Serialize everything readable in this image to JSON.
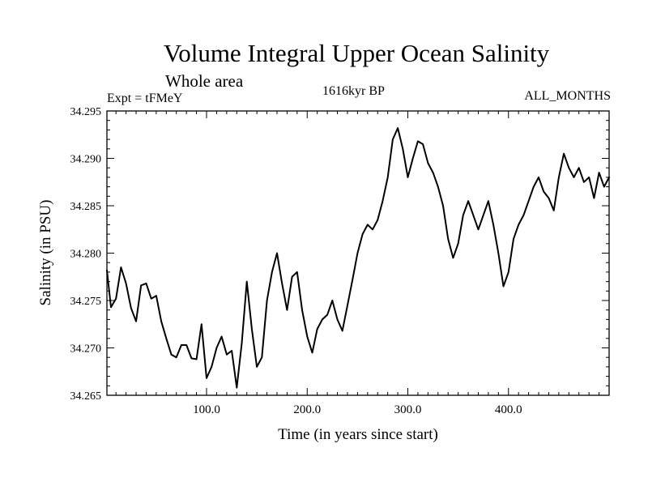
{
  "title": "Volume Integral Upper Ocean Salinity",
  "subtitle": "Whole area",
  "expt_label": "Expt = tFMeY",
  "period_label": "1616kyr BP",
  "months_label": "ALL_MONTHS",
  "chart_data": {
    "type": "line",
    "title": "Volume Integral Upper Ocean Salinity",
    "xlabel": "Time (in years since start)",
    "ylabel": "Salinity (in PSU)",
    "xlim": [
      1,
      500
    ],
    "ylim": [
      34.265,
      34.295
    ],
    "xticks": [
      100,
      200,
      300,
      400
    ],
    "xtick_labels": [
      "100.0",
      "200.0",
      "300.0",
      "400.0"
    ],
    "yticks": [
      34.265,
      34.27,
      34.275,
      34.28,
      34.285,
      34.29,
      34.295
    ],
    "ytick_labels": [
      "34.265",
      "34.270",
      "34.275",
      "34.280",
      "34.285",
      "34.290",
      "34.295"
    ],
    "series": [
      {
        "name": "Salinity",
        "x": [
          1,
          5,
          10,
          15,
          20,
          25,
          30,
          35,
          40,
          45,
          50,
          55,
          60,
          65,
          70,
          75,
          80,
          85,
          90,
          95,
          100,
          105,
          110,
          115,
          120,
          125,
          130,
          135,
          140,
          145,
          150,
          155,
          160,
          165,
          170,
          175,
          180,
          185,
          190,
          195,
          200,
          205,
          210,
          215,
          220,
          225,
          230,
          235,
          240,
          245,
          250,
          255,
          260,
          265,
          270,
          275,
          280,
          285,
          290,
          295,
          300,
          305,
          310,
          315,
          320,
          325,
          330,
          335,
          340,
          345,
          350,
          355,
          360,
          365,
          370,
          375,
          380,
          385,
          390,
          395,
          400,
          405,
          410,
          415,
          420,
          425,
          430,
          435,
          440,
          445,
          450,
          455,
          460,
          465,
          470,
          475,
          480,
          485,
          490,
          495,
          500
        ],
        "values": [
          34.2782,
          34.2743,
          34.2752,
          34.2785,
          34.2768,
          34.2742,
          34.2728,
          34.2766,
          34.2768,
          34.2752,
          34.2755,
          34.2728,
          34.271,
          34.2693,
          34.269,
          34.2703,
          34.2703,
          34.2689,
          34.2688,
          34.2725,
          34.2668,
          34.268,
          34.27,
          34.2712,
          34.2693,
          34.2697,
          34.2658,
          34.2705,
          34.277,
          34.272,
          34.268,
          34.269,
          34.275,
          34.278,
          34.28,
          34.2768,
          34.274,
          34.2775,
          34.278,
          34.274,
          34.2712,
          34.2695,
          34.272,
          34.273,
          34.2735,
          34.275,
          34.273,
          34.2718,
          34.2745,
          34.2772,
          34.28,
          34.282,
          34.283,
          34.2825,
          34.2835,
          34.2855,
          34.288,
          34.292,
          34.2932,
          34.291,
          34.288,
          34.29,
          34.2918,
          34.2915,
          34.2895,
          34.2885,
          34.287,
          34.285,
          34.2815,
          34.2795,
          34.281,
          34.284,
          34.2855,
          34.284,
          34.2825,
          34.284,
          34.2855,
          34.283,
          34.28,
          34.2765,
          34.278,
          34.2815,
          34.283,
          34.284,
          34.2855,
          34.287,
          34.288,
          34.2865,
          34.2858,
          34.2845,
          34.288,
          34.2905,
          34.289,
          34.288,
          34.289,
          34.2875,
          34.288,
          34.2858,
          34.2885,
          34.287,
          34.288
        ]
      }
    ]
  }
}
